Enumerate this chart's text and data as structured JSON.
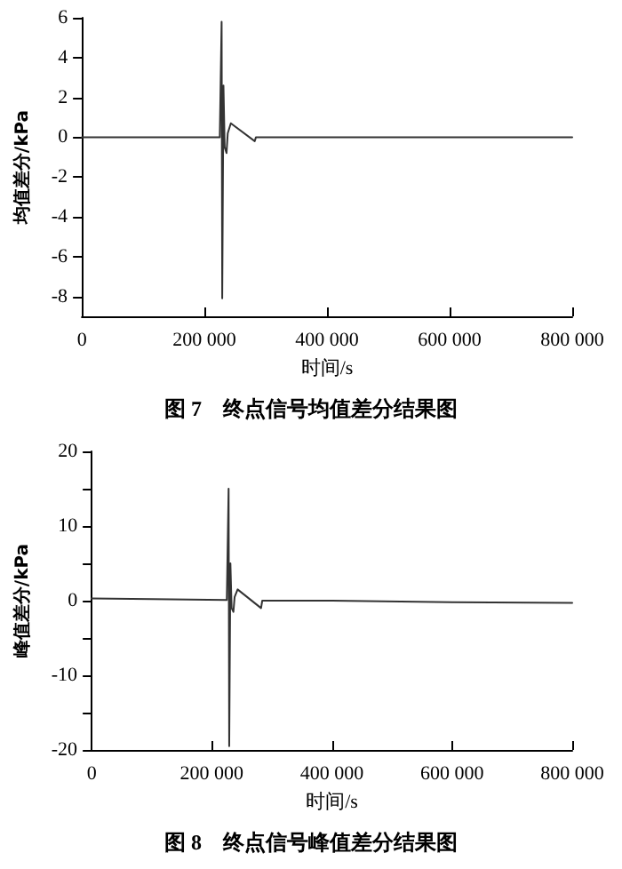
{
  "chart_data": [
    {
      "type": "line",
      "xlabel": "时间/s",
      "ylabel": "均值差分/kPa",
      "annotations": [
        "图 7　终点信号均值差分结果图"
      ],
      "series": [
        {
          "color": "#333333",
          "x": [
            0,
            100000,
            225000,
            228000,
            229000,
            231000,
            233000,
            236000,
            238000,
            243000,
            282000,
            284000,
            400000,
            600000,
            800000
          ],
          "values": [
            0,
            0,
            0,
            5.8,
            -8.1,
            2.6,
            -0.5,
            -0.8,
            0.2,
            0.7,
            -0.2,
            0,
            0,
            0,
            0
          ]
        }
      ],
      "xlim": [
        0,
        800000
      ],
      "xticks": [
        {
          "value": 0,
          "label": "0"
        },
        {
          "value": 200000,
          "label": "200 000"
        },
        {
          "value": 400000,
          "label": "400 000"
        },
        {
          "value": 600000,
          "label": "600 000"
        },
        {
          "value": 800000,
          "label": "800 000"
        }
      ],
      "ylim": [
        -9,
        6
      ],
      "yticks": [
        -8,
        -6,
        -4,
        -2,
        0,
        2,
        4,
        6
      ],
      "marker": "none",
      "line_style": "solid"
    },
    {
      "type": "line",
      "xlabel": "时间/s",
      "ylabel": "峰值差分/kPa",
      "annotations": [
        "图 8　终点信号峰值差分结果图"
      ],
      "series": [
        {
          "color": "#333333",
          "x": [
            0,
            100000,
            225000,
            228000,
            229000,
            231000,
            233000,
            236000,
            238000,
            243000,
            282000,
            284000,
            400000,
            600000,
            800000
          ],
          "values": [
            0.3,
            0.2,
            0.1,
            15,
            -19.5,
            5,
            -1,
            -1.5,
            0.5,
            1.5,
            -1,
            0,
            0,
            -0.2,
            -0.3
          ]
        }
      ],
      "xlim": [
        0,
        800000
      ],
      "xticks": [
        {
          "value": 0,
          "label": "0"
        },
        {
          "value": 200000,
          "label": "200 000"
        },
        {
          "value": 400000,
          "label": "400 000"
        },
        {
          "value": 600000,
          "label": "600 000"
        },
        {
          "value": 800000,
          "label": "800 000"
        }
      ],
      "ylim": [
        -20,
        20
      ],
      "yticks": [
        -20,
        {
          "value": -15,
          "label": null
        },
        -10,
        {
          "value": -5,
          "label": null
        },
        0,
        {
          "value": 5,
          "label": null
        },
        10,
        {
          "value": 15,
          "label": null
        },
        20
      ],
      "marker": "none",
      "line_style": "solid"
    }
  ]
}
